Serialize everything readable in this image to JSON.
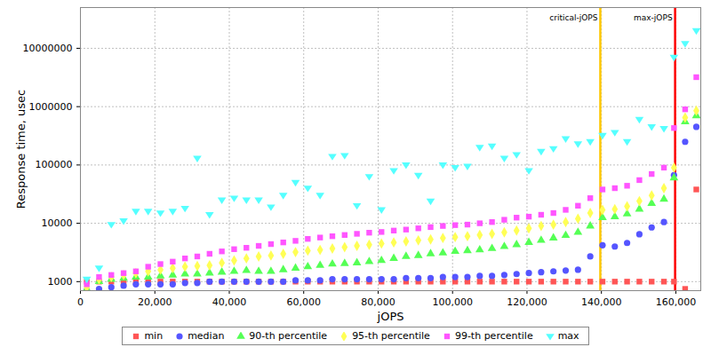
{
  "chart_data": {
    "type": "scatter",
    "x_label": "jOPS",
    "y_label": "Response time, usec",
    "log": "y",
    "grid": true,
    "legend": "bottom",
    "xlim": [
      0,
      166700
    ],
    "xticks": [
      0,
      {
        "value": 20000,
        "label": "20,000"
      },
      {
        "value": 40000,
        "label": "40,000"
      },
      {
        "value": 60000,
        "label": "60,000"
      },
      {
        "value": 80000,
        "label": "80,000"
      },
      {
        "value": 100000,
        "label": "100,000"
      },
      {
        "value": 120000,
        "label": "120,000"
      },
      {
        "value": 140000,
        "label": "140,000"
      },
      {
        "value": 160000,
        "label": "160,000"
      }
    ],
    "ylim": [
      700,
      50000000
    ],
    "yticks": [
      1000,
      10000,
      100000,
      1000000,
      10000000
    ],
    "x": [
      1700,
      5000,
      8300,
      11600,
      14900,
      18200,
      21500,
      24800,
      28100,
      31400,
      34700,
      38000,
      41300,
      44600,
      47900,
      51200,
      54500,
      57800,
      61100,
      64400,
      67700,
      71000,
      74300,
      77600,
      80900,
      84200,
      87500,
      90800,
      94100,
      97400,
      100700,
      104000,
      107300,
      110600,
      113900,
      117200,
      120500,
      123800,
      127100,
      130400,
      133700,
      137000,
      140300,
      143600,
      146900,
      150200,
      153500,
      156800,
      159500,
      162500,
      165500
    ],
    "series": [
      {
        "name": "min",
        "color": "#ff5555",
        "marker": "square",
        "values": [
          1000,
          1000,
          1000,
          1000,
          1000,
          1000,
          1000,
          1000,
          1000,
          1000,
          1000,
          1000,
          1000,
          1000,
          1000,
          1000,
          1000,
          1000,
          1000,
          1000,
          1000,
          1000,
          1000,
          1000,
          1000,
          1000,
          1000,
          1000,
          1000,
          1000,
          1000,
          1000,
          1000,
          1000,
          1000,
          1000,
          1000,
          1000,
          1000,
          1000,
          1000,
          1000,
          1000,
          1000,
          1000,
          1000,
          1000,
          1000,
          1000,
          750,
          38000
        ]
      },
      {
        "name": "median",
        "color": "#5555ff",
        "marker": "circle",
        "values": [
          700,
          750,
          800,
          850,
          900,
          900,
          900,
          900,
          950,
          950,
          1000,
          1000,
          1000,
          1000,
          1000,
          1000,
          1000,
          1050,
          1050,
          1050,
          1100,
          1100,
          1100,
          1100,
          1100,
          1100,
          1150,
          1150,
          1150,
          1200,
          1200,
          1200,
          1250,
          1250,
          1300,
          1350,
          1400,
          1450,
          1500,
          1550,
          1600,
          2700,
          4200,
          4000,
          4600,
          6500,
          8500,
          10500,
          67000,
          250000,
          450000
        ]
      },
      {
        "name": "90-th percentile",
        "color": "#55ff55",
        "marker": "triangle",
        "values": [
          750,
          1000,
          1100,
          1150,
          1200,
          1200,
          1250,
          1300,
          1350,
          1350,
          1400,
          1450,
          1500,
          1550,
          1500,
          1500,
          1600,
          1700,
          1800,
          1900,
          2000,
          2050,
          2100,
          2200,
          2300,
          2500,
          2700,
          2800,
          3000,
          3100,
          3300,
          3400,
          3500,
          3700,
          4000,
          4300,
          4700,
          5100,
          5600,
          6200,
          7000,
          9000,
          12500,
          13000,
          14500,
          17500,
          22000,
          26000,
          60000,
          550000,
          700000
        ]
      },
      {
        "name": "95-th percentile",
        "color": "#ffff55",
        "marker": "diamond",
        "values": [
          800,
          1100,
          1200,
          1300,
          1400,
          1500,
          1600,
          1700,
          1800,
          1850,
          1900,
          2100,
          2300,
          2500,
          2700,
          2800,
          3000,
          3200,
          3400,
          3500,
          3700,
          3900,
          4100,
          4300,
          4500,
          4700,
          4900,
          5100,
          5300,
          5600,
          5800,
          6000,
          6300,
          6600,
          7000,
          7500,
          8200,
          9000,
          9500,
          10500,
          12000,
          15000,
          17000,
          17500,
          19500,
          24000,
          30000,
          40000,
          90000,
          650000,
          850000
        ]
      },
      {
        "name": "99-th percentile",
        "color": "#ff55ff",
        "marker": "square",
        "values": [
          900,
          1200,
          1300,
          1400,
          1500,
          1800,
          2000,
          2200,
          2500,
          2700,
          3000,
          3300,
          3600,
          3800,
          4100,
          4400,
          4700,
          5000,
          5400,
          5700,
          6000,
          6300,
          6600,
          6900,
          7100,
          7500,
          7800,
          8200,
          8600,
          9000,
          9300,
          9500,
          10000,
          10500,
          11500,
          12500,
          13000,
          14000,
          15000,
          17000,
          20000,
          27000,
          38000,
          40000,
          44000,
          55000,
          70000,
          90000,
          430000,
          900000,
          3200000
        ]
      },
      {
        "name": "max",
        "color": "#55ffff",
        "marker": "triangle-down",
        "values": [
          1100,
          1700,
          9500,
          11000,
          16000,
          16000,
          15000,
          16000,
          18000,
          130000,
          14000,
          25000,
          27000,
          25000,
          25000,
          19000,
          30000,
          50000,
          40000,
          30000,
          140000,
          145000,
          20000,
          63000,
          17000,
          80000,
          100000,
          66000,
          24000,
          100000,
          90000,
          95000,
          200000,
          210000,
          130000,
          150000,
          80000,
          170000,
          190000,
          280000,
          230000,
          250000,
          320000,
          360000,
          250000,
          600000,
          450000,
          420000,
          7000000,
          12000000,
          20000000
        ]
      }
    ],
    "annotations": [
      {
        "x": 139700,
        "text": "critical-jOPS",
        "color": "#ffc800"
      },
      {
        "x": 159800,
        "text": "max-jOPS",
        "color": "#ff0000"
      }
    ]
  }
}
